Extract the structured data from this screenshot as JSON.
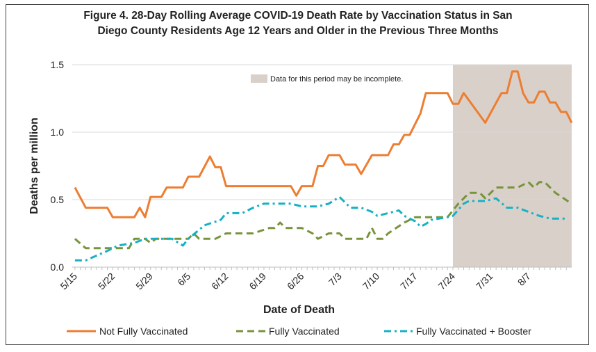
{
  "title_line1": "Figure 4. 28-Day Rolling Average COVID-19 Death Rate by Vaccination Status in San",
  "title_line2": "Diego County Residents Age 12 Years and Older in the Previous Three Months",
  "chart_data": {
    "type": "line",
    "title": "Figure 4. 28-Day Rolling Average COVID-19 Death Rate by Vaccination Status in San Diego County Residents Age 12 Years and Older in the Previous Three Months",
    "xlabel": "Date of Death",
    "ylabel": "Deaths per million",
    "ylim": [
      0,
      1.5
    ],
    "yticks": [
      "0.0",
      "0.5",
      "1.0",
      "1.5"
    ],
    "ytick_values": [
      0,
      0.5,
      1.0,
      1.5
    ],
    "x_start_index": 0,
    "x_end_index": 91,
    "xticks": [
      "5/15",
      "5/22",
      "5/29",
      "6/5",
      "6/12",
      "6/19",
      "6/26",
      "7/3",
      "7/10",
      "7/17",
      "7/24",
      "7/31",
      "8/7"
    ],
    "xtick_index": [
      0,
      7,
      14,
      21,
      28,
      35,
      42,
      49,
      56,
      63,
      70,
      77,
      84
    ],
    "grid": "horizontal",
    "shaded_region": {
      "start_index": 70,
      "end_index": 91,
      "color": "#d9d0c9",
      "label": "Data for this period may be incomplete."
    },
    "legend_position": "bottom",
    "series": [
      {
        "name": "Not Fully Vaccinated",
        "color": "#ed7d31",
        "style": "solid",
        "points": [
          [
            0,
            0.59
          ],
          [
            2,
            0.44
          ],
          [
            6,
            0.44
          ],
          [
            7,
            0.37
          ],
          [
            11,
            0.37
          ],
          [
            12,
            0.44
          ],
          [
            13,
            0.37
          ],
          [
            14,
            0.52
          ],
          [
            16,
            0.52
          ],
          [
            17,
            0.59
          ],
          [
            20,
            0.59
          ],
          [
            21,
            0.67
          ],
          [
            23,
            0.67
          ],
          [
            25,
            0.82
          ],
          [
            26,
            0.74
          ],
          [
            27,
            0.74
          ],
          [
            28,
            0.6
          ],
          [
            38,
            0.6
          ],
          [
            40,
            0.6
          ],
          [
            41,
            0.53
          ],
          [
            42,
            0.6
          ],
          [
            44,
            0.6
          ],
          [
            45,
            0.75
          ],
          [
            46,
            0.75
          ],
          [
            47,
            0.83
          ],
          [
            49,
            0.83
          ],
          [
            50,
            0.76
          ],
          [
            52,
            0.76
          ],
          [
            53,
            0.69
          ],
          [
            55,
            0.83
          ],
          [
            58,
            0.83
          ],
          [
            59,
            0.91
          ],
          [
            60,
            0.91
          ],
          [
            61,
            0.98
          ],
          [
            62,
            0.98
          ],
          [
            64,
            1.14
          ],
          [
            65,
            1.29
          ],
          [
            69,
            1.29
          ],
          [
            70,
            1.21
          ],
          [
            71,
            1.21
          ],
          [
            72,
            1.29
          ],
          [
            76,
            1.07
          ],
          [
            79,
            1.29
          ],
          [
            80,
            1.29
          ],
          [
            81,
            1.45
          ],
          [
            82,
            1.45
          ],
          [
            83,
            1.29
          ],
          [
            84,
            1.22
          ],
          [
            85,
            1.22
          ],
          [
            86,
            1.3
          ],
          [
            87,
            1.3
          ],
          [
            88,
            1.22
          ],
          [
            89,
            1.22
          ],
          [
            90,
            1.15
          ],
          [
            91,
            1.15
          ],
          [
            92,
            1.07
          ]
        ]
      },
      {
        "name": "Fully Vaccinated",
        "color": "#77933c",
        "style": "dashed",
        "points": [
          [
            0,
            0.21
          ],
          [
            2,
            0.14
          ],
          [
            10,
            0.14
          ],
          [
            11,
            0.21
          ],
          [
            13,
            0.21
          ],
          [
            14,
            0.18
          ],
          [
            15,
            0.21
          ],
          [
            21,
            0.21
          ],
          [
            22,
            0.25
          ],
          [
            23,
            0.21
          ],
          [
            26,
            0.21
          ],
          [
            28,
            0.25
          ],
          [
            33,
            0.25
          ],
          [
            36,
            0.29
          ],
          [
            37,
            0.29
          ],
          [
            38,
            0.33
          ],
          [
            39,
            0.29
          ],
          [
            42,
            0.29
          ],
          [
            44,
            0.25
          ],
          [
            45,
            0.21
          ],
          [
            47,
            0.25
          ],
          [
            49,
            0.25
          ],
          [
            50,
            0.21
          ],
          [
            54,
            0.21
          ],
          [
            55,
            0.29
          ],
          [
            56,
            0.21
          ],
          [
            57,
            0.21
          ],
          [
            58,
            0.25
          ],
          [
            61,
            0.33
          ],
          [
            63,
            0.37
          ],
          [
            64,
            0.37
          ],
          [
            66,
            0.37
          ],
          [
            69,
            0.37
          ],
          [
            71,
            0.47
          ],
          [
            73,
            0.55
          ],
          [
            75,
            0.55
          ],
          [
            76,
            0.51
          ],
          [
            78,
            0.59
          ],
          [
            82,
            0.59
          ],
          [
            84,
            0.63
          ],
          [
            85,
            0.59
          ],
          [
            86,
            0.63
          ],
          [
            87,
            0.63
          ],
          [
            89,
            0.55
          ],
          [
            92,
            0.47
          ]
        ]
      },
      {
        "name": "Fully Vaccinated + Booster",
        "color": "#17b1c4",
        "style": "dashdot",
        "points": [
          [
            0,
            0.05
          ],
          [
            2,
            0.05
          ],
          [
            6,
            0.12
          ],
          [
            8,
            0.16
          ],
          [
            11,
            0.18
          ],
          [
            13,
            0.21
          ],
          [
            18,
            0.21
          ],
          [
            20,
            0.16
          ],
          [
            21,
            0.21
          ],
          [
            24,
            0.31
          ],
          [
            27,
            0.35
          ],
          [
            28,
            0.4
          ],
          [
            31,
            0.4
          ],
          [
            33,
            0.44
          ],
          [
            35,
            0.47
          ],
          [
            38,
            0.47
          ],
          [
            40,
            0.47
          ],
          [
            42,
            0.45
          ],
          [
            45,
            0.45
          ],
          [
            47,
            0.47
          ],
          [
            49,
            0.52
          ],
          [
            51,
            0.44
          ],
          [
            53,
            0.44
          ],
          [
            55,
            0.41
          ],
          [
            56,
            0.38
          ],
          [
            58,
            0.4
          ],
          [
            60,
            0.42
          ],
          [
            61,
            0.38
          ],
          [
            63,
            0.34
          ],
          [
            64,
            0.3
          ],
          [
            65,
            0.32
          ],
          [
            66,
            0.35
          ],
          [
            69,
            0.37
          ],
          [
            70,
            0.38
          ],
          [
            72,
            0.47
          ],
          [
            73,
            0.49
          ],
          [
            74,
            0.49
          ],
          [
            76,
            0.49
          ],
          [
            78,
            0.51
          ],
          [
            80,
            0.44
          ],
          [
            82,
            0.44
          ],
          [
            84,
            0.41
          ],
          [
            86,
            0.38
          ],
          [
            88,
            0.36
          ],
          [
            91,
            0.36
          ]
        ]
      }
    ]
  }
}
